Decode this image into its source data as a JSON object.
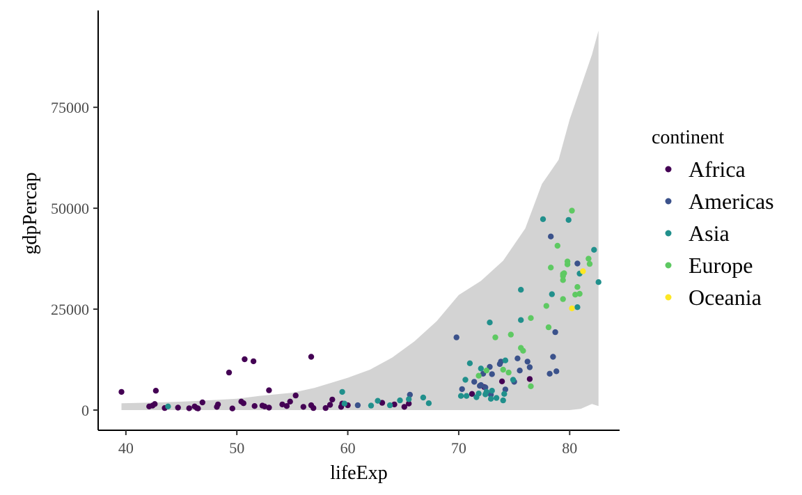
{
  "chart_data": {
    "type": "scatter",
    "xlabel": "lifeExp",
    "ylabel": "gdpPercap",
    "xlim": [
      37.5,
      84.5
    ],
    "ylim": [
      -5000,
      99000
    ],
    "x_ticks": [
      40,
      50,
      60,
      70,
      80
    ],
    "y_ticks": [
      0,
      25000,
      50000,
      75000
    ],
    "grid": false,
    "legend": {
      "title": "continent",
      "position": "right",
      "entries": [
        "Africa",
        "Americas",
        "Asia",
        "Europe",
        "Oceania"
      ]
    },
    "colors": {
      "Africa": "#440154",
      "Americas": "#3b528b",
      "Asia": "#21908c",
      "Europe": "#5ec962",
      "Oceania": "#fde725",
      "ribbon": "#d3d3d3"
    },
    "ribbon": {
      "x": [
        39.6,
        43,
        46,
        50,
        52,
        55,
        57,
        60,
        62,
        64,
        66,
        68,
        70,
        72,
        74,
        76,
        77.5,
        79,
        80,
        81,
        82,
        82.6
      ],
      "upper": [
        1700,
        1900,
        2200,
        2800,
        3500,
        4300,
        5500,
        8000,
        10000,
        13000,
        17000,
        22000,
        28500,
        32000,
        37000,
        45000,
        56000,
        62000,
        72000,
        80000,
        88000,
        94000
      ],
      "lower": [
        0,
        0,
        0,
        0,
        0,
        0,
        0,
        0,
        0,
        0,
        0,
        0,
        0,
        0,
        0,
        0,
        0,
        0,
        0,
        300,
        1500,
        1000
      ]
    },
    "series": [
      {
        "name": "Africa",
        "points": [
          [
            39.6,
            4500
          ],
          [
            42.1,
            900
          ],
          [
            42.4,
            1100
          ],
          [
            42.6,
            1500
          ],
          [
            42.7,
            4800
          ],
          [
            43.5,
            500
          ],
          [
            44.7,
            600
          ],
          [
            45.7,
            450
          ],
          [
            46.2,
            900
          ],
          [
            46.4,
            500
          ],
          [
            46.5,
            400
          ],
          [
            46.9,
            1900
          ],
          [
            48.2,
            800
          ],
          [
            48.3,
            1400
          ],
          [
            49.3,
            9300
          ],
          [
            49.6,
            400
          ],
          [
            50.4,
            2100
          ],
          [
            50.6,
            1700
          ],
          [
            50.7,
            12600
          ],
          [
            51.5,
            12100
          ],
          [
            51.6,
            1000
          ],
          [
            52.3,
            1100
          ],
          [
            52.5,
            900
          ],
          [
            52.9,
            600
          ],
          [
            52.9,
            4900
          ],
          [
            54.1,
            1400
          ],
          [
            54.5,
            1000
          ],
          [
            54.8,
            2100
          ],
          [
            55.3,
            3600
          ],
          [
            56.0,
            800
          ],
          [
            56.7,
            1200
          ],
          [
            56.7,
            13200
          ],
          [
            56.9,
            500
          ],
          [
            58.0,
            500
          ],
          [
            58.4,
            1300
          ],
          [
            58.6,
            2600
          ],
          [
            59.4,
            800
          ],
          [
            59.5,
            1600
          ],
          [
            60.0,
            1200
          ],
          [
            63.1,
            1800
          ],
          [
            64.2,
            1400
          ],
          [
            65.1,
            800
          ],
          [
            65.5,
            1600
          ],
          [
            71.2,
            4000
          ],
          [
            72.3,
            5700
          ],
          [
            73.9,
            7100
          ],
          [
            76.4,
            7700
          ]
        ]
      },
      {
        "name": "Americas",
        "points": [
          [
            60.9,
            1200
          ],
          [
            65.6,
            3800
          ],
          [
            69.8,
            18000
          ],
          [
            70.3,
            5200
          ],
          [
            71.4,
            7000
          ],
          [
            71.9,
            6000
          ],
          [
            72.0,
            6200
          ],
          [
            72.2,
            9000
          ],
          [
            72.4,
            5600
          ],
          [
            72.8,
            10700
          ],
          [
            72.9,
            3800
          ],
          [
            73.0,
            8900
          ],
          [
            73.7,
            11400
          ],
          [
            73.8,
            12000
          ],
          [
            74.2,
            5100
          ],
          [
            75.0,
            7000
          ],
          [
            75.3,
            12800
          ],
          [
            75.5,
            9800
          ],
          [
            76.2,
            12000
          ],
          [
            76.4,
            10600
          ],
          [
            78.2,
            9000
          ],
          [
            78.3,
            43000
          ],
          [
            78.5,
            13200
          ],
          [
            78.7,
            19300
          ],
          [
            78.8,
            9600
          ],
          [
            80.7,
            36300
          ]
        ]
      },
      {
        "name": "Asia",
        "points": [
          [
            43.8,
            900
          ],
          [
            59.5,
            4500
          ],
          [
            59.7,
            1600
          ],
          [
            62.1,
            1100
          ],
          [
            62.7,
            2300
          ],
          [
            63.8,
            1200
          ],
          [
            64.7,
            2400
          ],
          [
            65.5,
            2700
          ],
          [
            66.8,
            3100
          ],
          [
            67.3,
            1700
          ],
          [
            70.2,
            3500
          ],
          [
            70.6,
            7500
          ],
          [
            70.7,
            3500
          ],
          [
            71.0,
            11600
          ],
          [
            71.6,
            3200
          ],
          [
            71.8,
            4100
          ],
          [
            72.0,
            10300
          ],
          [
            72.4,
            3900
          ],
          [
            72.5,
            4500
          ],
          [
            72.8,
            21700
          ],
          [
            72.9,
            2800
          ],
          [
            73.0,
            4800
          ],
          [
            73.4,
            3000
          ],
          [
            74.0,
            2400
          ],
          [
            74.1,
            4000
          ],
          [
            74.2,
            12300
          ],
          [
            74.9,
            7500
          ],
          [
            75.6,
            22300
          ],
          [
            75.6,
            29800
          ],
          [
            77.6,
            47300
          ],
          [
            78.4,
            28700
          ],
          [
            79.9,
            47100
          ],
          [
            80.7,
            25500
          ],
          [
            80.9,
            33800
          ],
          [
            82.2,
            39700
          ],
          [
            82.6,
            31700
          ]
        ]
      },
      {
        "name": "Europe",
        "points": [
          [
            71.8,
            8500
          ],
          [
            72.5,
            9800
          ],
          [
            73.3,
            18000
          ],
          [
            74.0,
            10000
          ],
          [
            74.5,
            9300
          ],
          [
            74.7,
            18700
          ],
          [
            75.6,
            15400
          ],
          [
            75.8,
            14700
          ],
          [
            76.5,
            5900
          ],
          [
            76.5,
            22800
          ],
          [
            77.9,
            25800
          ],
          [
            78.1,
            20500
          ],
          [
            78.3,
            35300
          ],
          [
            78.9,
            40700
          ],
          [
            79.4,
            27500
          ],
          [
            79.4,
            32200
          ],
          [
            79.4,
            33200
          ],
          [
            79.4,
            33700
          ],
          [
            79.5,
            33900
          ],
          [
            79.8,
            36800
          ],
          [
            79.8,
            36100
          ],
          [
            80.2,
            49400
          ],
          [
            80.5,
            28600
          ],
          [
            80.7,
            30500
          ],
          [
            80.9,
            28800
          ],
          [
            81.7,
            37500
          ],
          [
            81.8,
            36200
          ]
        ]
      },
      {
        "name": "Oceania",
        "points": [
          [
            80.2,
            25200
          ],
          [
            81.2,
            34400
          ]
        ]
      }
    ]
  }
}
